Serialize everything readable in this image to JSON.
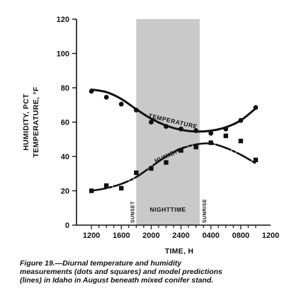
{
  "chart_data": {
    "type": "line",
    "title": "",
    "xlabel": "TIME, H",
    "ylabel": "HUMIDITY, PCT",
    "ylabel2": "TEMPERATURE, °F",
    "ylim": [
      0,
      120
    ],
    "y_ticks": [
      "0",
      "20",
      "40",
      "60",
      "80",
      "100",
      "120"
    ],
    "x_ticks": [
      "1200",
      "1600",
      "2000",
      "2400",
      "0400",
      "0800",
      "1200"
    ],
    "shaded_region": {
      "x_start": 8,
      "x_end": 16.5,
      "label": "NIGHTTIME"
    },
    "annotations": {
      "start": "SUNSET",
      "end": "SUNRISE"
    },
    "series": [
      {
        "name": "TEMPERATURE",
        "marker": "circle",
        "points": [
          {
            "x": 2,
            "y": 78
          },
          {
            "x": 4,
            "y": 74.5
          },
          {
            "x": 6,
            "y": 70.5
          },
          {
            "x": 8,
            "y": 67
          },
          {
            "x": 10,
            "y": 60
          },
          {
            "x": 12,
            "y": 57.5
          },
          {
            "x": 14,
            "y": 56
          },
          {
            "x": 16,
            "y": 55
          },
          {
            "x": 18,
            "y": 53.5
          },
          {
            "x": 20,
            "y": 56
          },
          {
            "x": 22,
            "y": 61
          },
          {
            "x": 24,
            "y": 68.5
          }
        ],
        "model": [
          {
            "x": 2,
            "y": 79
          },
          {
            "x": 4,
            "y": 77.5
          },
          {
            "x": 6,
            "y": 73.5
          },
          {
            "x": 8,
            "y": 67.5
          },
          {
            "x": 10,
            "y": 62
          },
          {
            "x": 12,
            "y": 58
          },
          {
            "x": 14,
            "y": 55.5
          },
          {
            "x": 16,
            "y": 54.5
          },
          {
            "x": 18,
            "y": 55
          },
          {
            "x": 20,
            "y": 57
          },
          {
            "x": 22,
            "y": 61
          },
          {
            "x": 24,
            "y": 68
          }
        ]
      },
      {
        "name": "HUMIDITY",
        "marker": "square",
        "points": [
          {
            "x": 2,
            "y": 20
          },
          {
            "x": 4,
            "y": 23
          },
          {
            "x": 6,
            "y": 21.5
          },
          {
            "x": 8,
            "y": 30.5
          },
          {
            "x": 10,
            "y": 33
          },
          {
            "x": 12,
            "y": 36.5
          },
          {
            "x": 14,
            "y": 43.5
          },
          {
            "x": 16,
            "y": 45.5
          },
          {
            "x": 18,
            "y": 48
          },
          {
            "x": 20,
            "y": 52
          },
          {
            "x": 22,
            "y": 49
          },
          {
            "x": 24,
            "y": 38
          }
        ],
        "model": [
          {
            "x": 2,
            "y": 20
          },
          {
            "x": 4,
            "y": 21.5
          },
          {
            "x": 6,
            "y": 24
          },
          {
            "x": 8,
            "y": 28
          },
          {
            "x": 10,
            "y": 34
          },
          {
            "x": 12,
            "y": 40
          },
          {
            "x": 14,
            "y": 44.5
          },
          {
            "x": 16,
            "y": 47
          },
          {
            "x": 18,
            "y": 47.5
          },
          {
            "x": 20,
            "y": 45
          },
          {
            "x": 22,
            "y": 41
          },
          {
            "x": 24,
            "y": 36
          }
        ]
      }
    ]
  },
  "caption": "Figure 19.—Diurnal temperature and humidity measurements (dots and squares) and model predictions (lines) in Idaho in August beneath mixed conifer stand.",
  "colors": {
    "ink": "#111111",
    "shade": "#c9c9c9"
  }
}
